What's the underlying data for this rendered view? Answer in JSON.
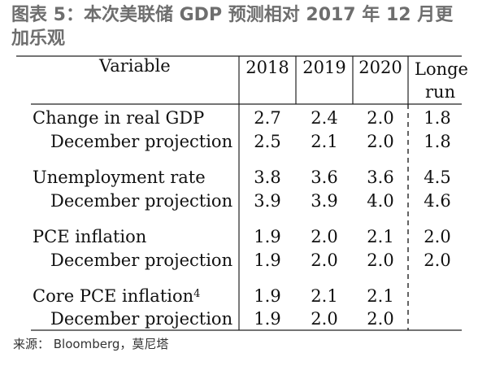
{
  "title": "图表 5：本次美联储 GDP 预测相对 2017 年 12 月更加乐观",
  "header": {
    "variable": "Variable",
    "y2018": "2018",
    "y2019": "2019",
    "y2020": "2020",
    "longrun_line1": "Longe",
    "longrun_line2": "run"
  },
  "rows": [
    {
      "label": "Change in real GDP",
      "v2018": "2.7",
      "v2019": "2.4",
      "v2020": "2.0",
      "longrun": "1.8"
    },
    {
      "label": "December projection",
      "v2018": "2.5",
      "v2019": "2.1",
      "v2020": "2.0",
      "longrun": "1.8"
    },
    {
      "label": "Unemployment rate",
      "v2018": "3.8",
      "v2019": "3.6",
      "v2020": "3.6",
      "longrun": "4.5"
    },
    {
      "label": "December projection",
      "v2018": "3.9",
      "v2019": "3.9",
      "v2020": "4.0",
      "longrun": "4.6"
    },
    {
      "label": "PCE inflation",
      "v2018": "1.9",
      "v2019": "2.0",
      "v2020": "2.1",
      "longrun": "2.0"
    },
    {
      "label": "December projection",
      "v2018": "1.9",
      "v2019": "2.0",
      "v2020": "2.0",
      "longrun": "2.0"
    },
    {
      "label": "Core PCE inflation",
      "footnote": "4",
      "v2018": "1.9",
      "v2019": "2.1",
      "v2020": "2.1",
      "longrun": ""
    },
    {
      "label": "December projection",
      "v2018": "1.9",
      "v2019": "2.0",
      "v2020": "2.0",
      "longrun": ""
    }
  ],
  "source": "来源： Bloomberg，莫尼塔"
}
